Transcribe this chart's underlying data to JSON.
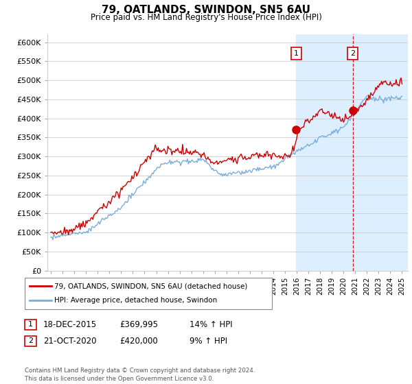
{
  "title": "79, OATLANDS, SWINDON, SN5 6AU",
  "subtitle": "Price paid vs. HM Land Registry's House Price Index (HPI)",
  "legend_line1": "79, OATLANDS, SWINDON, SN5 6AU (detached house)",
  "legend_line2": "HPI: Average price, detached house, Swindon",
  "sale1_date": "18-DEC-2015",
  "sale1_price": "£369,995",
  "sale1_hpi": "14% ↑ HPI",
  "sale1_year": 2015.96,
  "sale1_value": 369995,
  "sale2_date": "21-OCT-2020",
  "sale2_price": "£420,000",
  "sale2_hpi": "9% ↑ HPI",
  "sale2_year": 2020.8,
  "sale2_value": 420000,
  "red_color": "#cc0000",
  "blue_color": "#7aaddb",
  "shade_color": "#ddeeff",
  "footer": "Contains HM Land Registry data © Crown copyright and database right 2024.\nThis data is licensed under the Open Government Licence v3.0.",
  "ylim": [
    0,
    620000
  ],
  "xlim_min": 1994.7,
  "xlim_max": 2025.5,
  "yticks": [
    0,
    50000,
    100000,
    150000,
    200000,
    250000,
    300000,
    350000,
    400000,
    450000,
    500000,
    550000,
    600000
  ]
}
